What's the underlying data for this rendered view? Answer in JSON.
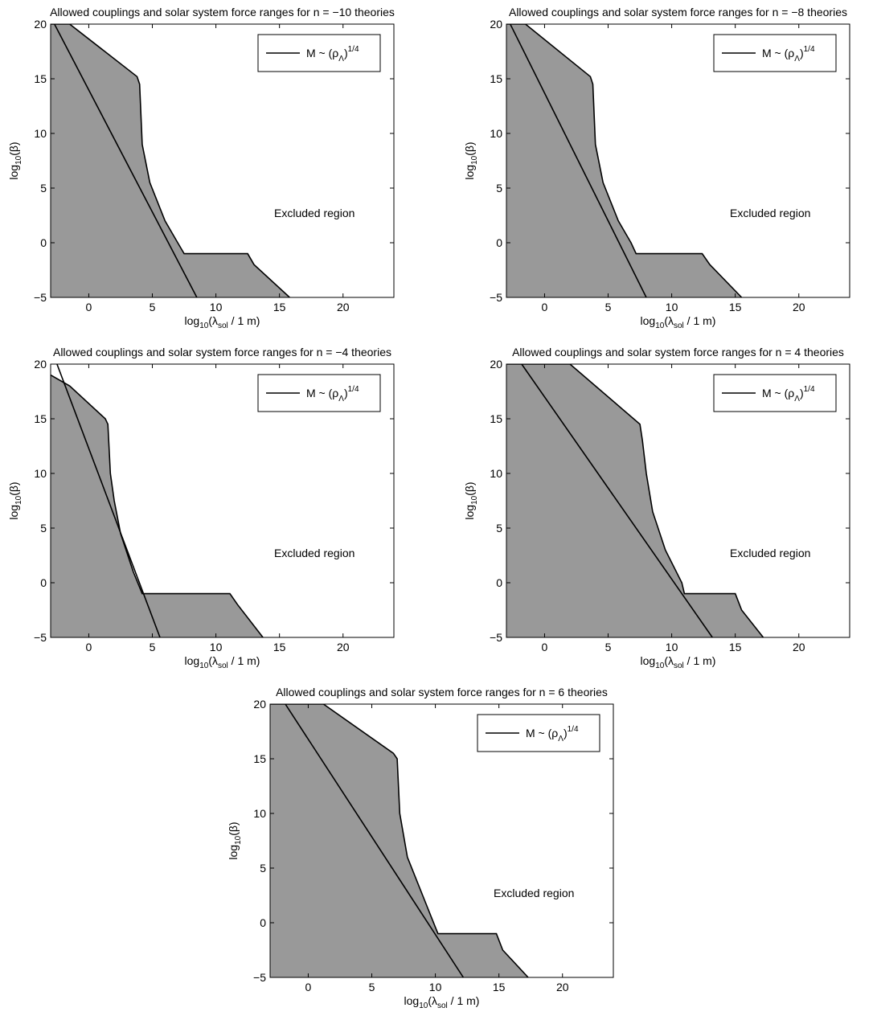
{
  "chart_data": [
    {
      "type": "area",
      "title": "Allowed couplings and solar system force ranges for n = −10 theories",
      "xlabel": {
        "base": "log",
        "sub": "10",
        "paren_open": "(λ",
        "var_sub": "sol",
        "rest": " / 1 m)"
      },
      "ylabel": {
        "base": "log",
        "sub": "10",
        "rest": "(β)"
      },
      "xlim": [
        -3,
        24
      ],
      "ylim": [
        -5,
        20
      ],
      "xticks": [
        0,
        5,
        10,
        15,
        20
      ],
      "yticks": [
        -5,
        0,
        5,
        10,
        15,
        20
      ],
      "grid": false,
      "legend": {
        "position": "top-right",
        "label_main": "M ~ (ρ",
        "label_sub": "Λ",
        "label_close": ")",
        "label_sup": "1/4"
      },
      "annotation": "Excluded region",
      "allowed_region_boundary": [
        [
          -3,
          20
        ],
        [
          -1.5,
          20
        ],
        [
          3.8,
          15.2
        ],
        [
          4,
          14.5
        ],
        [
          4.2,
          9
        ],
        [
          4.8,
          5.5
        ],
        [
          6,
          2
        ],
        [
          7,
          0
        ],
        [
          7.5,
          -1
        ],
        [
          12.5,
          -1
        ],
        [
          13,
          -2
        ],
        [
          15.8,
          -5
        ]
      ],
      "line": [
        [
          -2.7,
          20
        ],
        [
          8.5,
          -5
        ]
      ]
    },
    {
      "type": "area",
      "title": "Allowed couplings and solar system force ranges for n = −8 theories",
      "xlabel": {
        "base": "log",
        "sub": "10",
        "paren_open": "(λ",
        "var_sub": "sol",
        "rest": " / 1 m)"
      },
      "ylabel": {
        "base": "log",
        "sub": "10",
        "rest": "(β)"
      },
      "xlim": [
        -3,
        24
      ],
      "ylim": [
        -5,
        20
      ],
      "xticks": [
        0,
        5,
        10,
        15,
        20
      ],
      "yticks": [
        -5,
        0,
        5,
        10,
        15,
        20
      ],
      "grid": false,
      "legend": {
        "position": "top-right",
        "label_main": "M ~ (ρ",
        "label_sub": "Λ",
        "label_close": ")",
        "label_sup": "1/4"
      },
      "annotation": "Excluded region",
      "allowed_region_boundary": [
        [
          -3,
          20
        ],
        [
          -1.5,
          20
        ],
        [
          3.6,
          15.2
        ],
        [
          3.8,
          14.5
        ],
        [
          4,
          9
        ],
        [
          4.6,
          5.5
        ],
        [
          5.8,
          2
        ],
        [
          6.8,
          0
        ],
        [
          7.2,
          -1
        ],
        [
          12.4,
          -1
        ],
        [
          13,
          -2
        ],
        [
          15.5,
          -5
        ]
      ],
      "line": [
        [
          -2.7,
          20
        ],
        [
          8,
          -5
        ]
      ]
    },
    {
      "type": "area",
      "title": "Allowed couplings and solar system force ranges for n = −4 theories",
      "xlabel": {
        "base": "log",
        "sub": "10",
        "paren_open": "(λ",
        "var_sub": "sol",
        "rest": " / 1 m)"
      },
      "ylabel": {
        "base": "log",
        "sub": "10",
        "rest": "(β)"
      },
      "xlim": [
        -3,
        24
      ],
      "ylim": [
        -5,
        20
      ],
      "xticks": [
        0,
        5,
        10,
        15,
        20
      ],
      "yticks": [
        -5,
        0,
        5,
        10,
        15,
        20
      ],
      "grid": false,
      "legend": {
        "position": "top-right",
        "label_main": "M ~ (ρ",
        "label_sub": "Λ",
        "label_close": ")",
        "label_sup": "1/4"
      },
      "annotation": "Excluded region",
      "allowed_region_boundary": [
        [
          -3,
          19
        ],
        [
          -1.5,
          18
        ],
        [
          1.3,
          15
        ],
        [
          1.5,
          14.5
        ],
        [
          1.7,
          10
        ],
        [
          2,
          7.5
        ],
        [
          2.5,
          4.5
        ],
        [
          3.5,
          1
        ],
        [
          4.2,
          -1
        ],
        [
          11.1,
          -1
        ],
        [
          11.7,
          -2
        ],
        [
          13.7,
          -5
        ]
      ],
      "line": [
        [
          -2.5,
          20
        ],
        [
          5.6,
          -5
        ]
      ]
    },
    {
      "type": "area",
      "title": "Allowed couplings and solar system force ranges for n = 4 theories",
      "xlabel": {
        "base": "log",
        "sub": "10",
        "paren_open": "(λ",
        "var_sub": "sol",
        "rest": " / 1 m)"
      },
      "ylabel": {
        "base": "log",
        "sub": "10",
        "rest": "(β)"
      },
      "xlim": [
        -3,
        24
      ],
      "ylim": [
        -5,
        20
      ],
      "xticks": [
        0,
        5,
        10,
        15,
        20
      ],
      "yticks": [
        -5,
        0,
        5,
        10,
        15,
        20
      ],
      "grid": false,
      "legend": {
        "position": "top-right",
        "label_main": "M ~ (ρ",
        "label_sub": "Λ",
        "label_close": ")",
        "label_sup": "1/4"
      },
      "annotation": "Excluded region",
      "allowed_region_boundary": [
        [
          -3,
          20
        ],
        [
          2,
          20
        ],
        [
          7.5,
          14.5
        ],
        [
          7.7,
          13
        ],
        [
          8,
          10
        ],
        [
          8.5,
          6.5
        ],
        [
          9.5,
          3
        ],
        [
          10.8,
          0
        ],
        [
          11,
          -1
        ],
        [
          15,
          -1
        ],
        [
          15.5,
          -2.5
        ],
        [
          17.2,
          -5
        ]
      ],
      "line": [
        [
          -1.8,
          20
        ],
        [
          13.2,
          -5
        ]
      ]
    },
    {
      "type": "area",
      "title": "Allowed couplings and solar system force ranges for n = 6 theories",
      "xlabel": {
        "base": "log",
        "sub": "10",
        "paren_open": "(λ",
        "var_sub": "sol",
        "rest": " / 1 m)"
      },
      "ylabel": {
        "base": "log",
        "sub": "10",
        "rest": "(β)"
      },
      "xlim": [
        -3,
        24
      ],
      "ylim": [
        -5,
        20
      ],
      "xticks": [
        0,
        5,
        10,
        15,
        20
      ],
      "yticks": [
        -5,
        0,
        5,
        10,
        15,
        20
      ],
      "grid": false,
      "legend": {
        "position": "top-right",
        "label_main": "M ~ (ρ",
        "label_sub": "Λ",
        "label_close": ")",
        "label_sup": "1/4"
      },
      "annotation": "Excluded region",
      "allowed_region_boundary": [
        [
          -3,
          20
        ],
        [
          1.2,
          20
        ],
        [
          6.7,
          15.5
        ],
        [
          7,
          15
        ],
        [
          7.2,
          10
        ],
        [
          7.8,
          6
        ],
        [
          9,
          2.5
        ],
        [
          10.2,
          -1
        ],
        [
          14.8,
          -1
        ],
        [
          15.3,
          -2.5
        ],
        [
          17.3,
          -5
        ]
      ],
      "line": [
        [
          -1.8,
          20
        ],
        [
          12.2,
          -5
        ]
      ]
    }
  ]
}
